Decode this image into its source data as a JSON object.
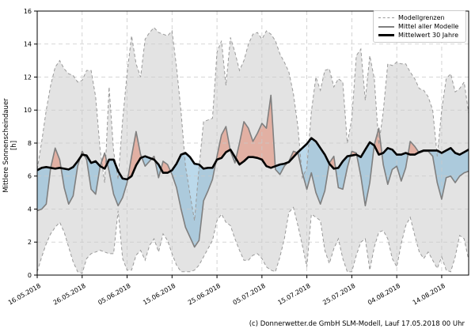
{
  "ylabel": "Mittlere Sonnenscheindauer [h]",
  "caption": "(c) Donnerwetter.de GmbH SLM-Modell, Lauf 17.05.2018 00 Uhr",
  "legend": {
    "items": [
      {
        "label": "Modellgrenzen",
        "style": "dashed-gray"
      },
      {
        "label": "Mittel aller Modelle",
        "style": "solid-gray"
      },
      {
        "label": "Mittelwert 30 Jahre",
        "style": "solid-black-thick"
      }
    ]
  },
  "colors": {
    "band_fill": "#e3e3e3",
    "band_border": "#999999",
    "model_mean_line": "#7f7f7f",
    "climatology_line": "#000000",
    "fill_above_normal": "rgba(225,112,85,0.45)",
    "fill_below_normal": "rgba(105,170,210,0.45)",
    "grid": "#c9c9c9",
    "spine": "#000000"
  },
  "chart_data": {
    "type": "line",
    "title": "",
    "xlabel": "",
    "ylabel": "Mittlere Sonnenscheindauer [h]",
    "ylim": [
      0,
      16
    ],
    "yticks": [
      0,
      2,
      4,
      6,
      8,
      10,
      12,
      14,
      16
    ],
    "grid": true,
    "legend_position": "upper right",
    "x_unit": "days since 16.05.2018 (daily values)",
    "x_tick_days": [
      0,
      10,
      20,
      30,
      40,
      50,
      60,
      70,
      80,
      90
    ],
    "x_tick_labels": [
      "16.05.2018",
      "26.05.2018",
      "05.06.2018",
      "15.06.2018",
      "25.06.2018",
      "05.07.2018",
      "15.07.2018",
      "25.07.2018",
      "04.08.2018",
      "14.08.2018"
    ],
    "series": [
      {
        "name": "Modellgrenzen (Obergrenze)",
        "role": "upper_bound",
        "values": [
          6.4,
          8.1,
          10.0,
          11.5,
          12.6,
          13.0,
          12.5,
          12.2,
          12.1,
          11.7,
          11.8,
          12.4,
          12.4,
          10.8,
          7.6,
          5.6,
          11.4,
          7.5,
          5.8,
          9.4,
          12.2,
          14.5,
          12.8,
          12.0,
          14.3,
          14.7,
          15.0,
          14.7,
          14.6,
          14.5,
          14.8,
          12.6,
          9.9,
          6.6,
          4.9,
          3.3,
          6.5,
          9.3,
          9.4,
          9.5,
          13.5,
          14.2,
          11.5,
          14.4,
          13.5,
          12.4,
          13.0,
          14.0,
          14.6,
          14.7,
          14.3,
          14.8,
          14.6,
          14.2,
          13.4,
          12.9,
          12.3,
          11.0,
          9.0,
          5.9,
          6.5,
          9.9,
          12.0,
          11.2,
          12.4,
          12.5,
          11.4,
          11.9,
          11.7,
          8.0,
          9.5,
          13.3,
          13.7,
          10.6,
          13.3,
          11.9,
          7.9,
          9.9,
          12.8,
          12.7,
          12.9,
          12.8,
          12.8,
          12.3,
          11.9,
          11.3,
          11.2,
          10.8,
          10.0,
          7.2,
          10.0,
          11.9,
          12.2,
          11.1,
          11.3,
          11.7,
          9.8
        ]
      },
      {
        "name": "Modellgrenzen (Untergrenze)",
        "role": "lower_bound",
        "values": [
          0.2,
          1.1,
          1.9,
          2.5,
          2.9,
          3.2,
          2.6,
          1.7,
          0.8,
          0.2,
          0.1,
          1.0,
          1.3,
          1.4,
          1.5,
          1.4,
          1.3,
          1.3,
          3.9,
          1.0,
          0.3,
          0.3,
          1.2,
          1.5,
          0.9,
          1.8,
          2.2,
          1.4,
          2.5,
          2.1,
          1.3,
          0.6,
          0.2,
          0.2,
          0.2,
          0.3,
          0.6,
          1.1,
          1.6,
          2.1,
          3.3,
          3.7,
          3.2,
          3.0,
          2.2,
          1.5,
          0.9,
          0.9,
          1.2,
          1.3,
          1.0,
          0.5,
          0.3,
          0.2,
          1.1,
          2.2,
          3.8,
          4.1,
          3.0,
          1.8,
          0.5,
          3.7,
          3.5,
          3.3,
          1.5,
          0.7,
          1.6,
          2.2,
          1.0,
          0.2,
          0.2,
          1.2,
          2.0,
          2.2,
          0.3,
          1.7,
          2.6,
          2.7,
          2.2,
          1.0,
          0.5,
          1.9,
          3.0,
          3.5,
          2.4,
          1.4,
          1.0,
          1.4,
          0.9,
          0.4,
          1.1,
          0.3,
          0.2,
          1.1,
          2.4,
          2.2,
          0.9
        ]
      },
      {
        "name": "Mittel aller Modelle",
        "role": "model_mean",
        "values": [
          3.9,
          4.0,
          4.3,
          6.5,
          7.7,
          7.0,
          5.3,
          4.3,
          4.8,
          6.6,
          7.5,
          7.0,
          5.2,
          4.9,
          6.6,
          7.4,
          6.3,
          4.9,
          4.2,
          4.7,
          5.6,
          7.2,
          8.7,
          7.3,
          6.6,
          6.9,
          7.2,
          5.9,
          6.9,
          6.7,
          6.1,
          5.3,
          4.0,
          2.9,
          2.3,
          1.7,
          2.1,
          4.5,
          5.1,
          5.8,
          7.2,
          8.5,
          9.0,
          7.5,
          6.8,
          8.0,
          9.3,
          8.9,
          8.1,
          8.6,
          9.2,
          8.9,
          10.9,
          6.4,
          6.1,
          6.6,
          6.9,
          7.5,
          7.4,
          6.2,
          5.2,
          6.2,
          5.0,
          4.3,
          5.1,
          6.8,
          7.2,
          5.3,
          5.2,
          6.5,
          7.5,
          7.4,
          6.0,
          4.2,
          5.6,
          7.9,
          8.9,
          6.7,
          5.5,
          6.4,
          6.6,
          5.7,
          6.5,
          8.1,
          7.8,
          7.4,
          7.5,
          7.5,
          7.2,
          5.6,
          4.6,
          5.9,
          6.0,
          5.6,
          6.0,
          6.2,
          6.3
        ]
      },
      {
        "name": "Mittelwert 30 Jahre",
        "role": "climatology",
        "values": [
          6.35,
          6.5,
          6.55,
          6.5,
          6.45,
          6.5,
          6.45,
          6.4,
          6.55,
          6.9,
          7.3,
          7.25,
          6.8,
          6.9,
          6.6,
          6.45,
          7.0,
          7.0,
          6.3,
          5.85,
          5.8,
          6.0,
          6.65,
          7.1,
          7.2,
          7.1,
          7.0,
          6.7,
          6.2,
          6.2,
          6.35,
          6.75,
          7.3,
          7.4,
          7.15,
          6.75,
          6.7,
          6.45,
          6.5,
          6.5,
          7.0,
          7.1,
          7.45,
          7.6,
          7.15,
          6.7,
          6.9,
          7.15,
          7.15,
          7.1,
          7.0,
          6.6,
          6.5,
          6.6,
          6.7,
          6.75,
          6.85,
          7.15,
          7.45,
          7.7,
          7.95,
          8.3,
          8.1,
          7.7,
          7.3,
          6.75,
          6.45,
          6.5,
          6.9,
          7.2,
          7.25,
          7.3,
          7.15,
          7.6,
          8.05,
          7.85,
          7.3,
          7.4,
          7.7,
          7.6,
          7.3,
          7.3,
          7.4,
          7.3,
          7.3,
          7.45,
          7.55,
          7.55,
          7.55,
          7.55,
          7.4,
          7.55,
          7.7,
          7.4,
          7.3,
          7.45,
          7.6
        ]
      }
    ]
  }
}
